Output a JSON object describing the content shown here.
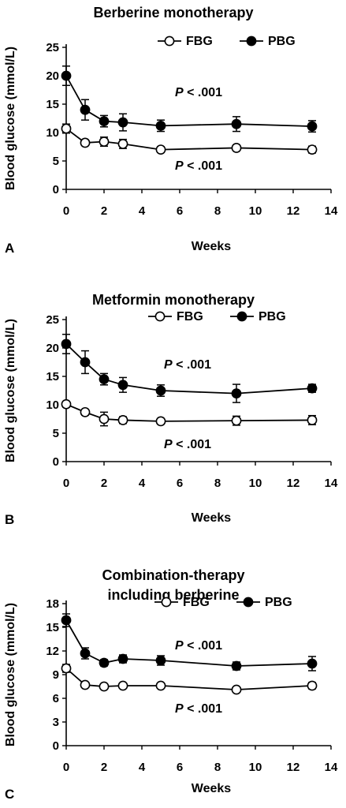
{
  "chart_data": [
    {
      "type": "line",
      "panel": "A",
      "title": [
        "Berberine monotherapy"
      ],
      "xlabel": "Weeks",
      "ylabel": "Blood glucose (mmol/L)",
      "xlim": [
        0,
        14
      ],
      "ylim": [
        0,
        25
      ],
      "xticks": [
        0,
        2,
        4,
        6,
        8,
        10,
        12,
        14
      ],
      "yticks": [
        0,
        5,
        10,
        15,
        20,
        25
      ],
      "legend": {
        "placement": "top-right"
      },
      "annotations": [
        {
          "italic": "P",
          "rest": " < .001",
          "series": "PBG"
        },
        {
          "italic": "P",
          "rest": " < .001",
          "series": "FBG"
        }
      ],
      "series": [
        {
          "name": "FBG",
          "marker": "open-circle",
          "x": [
            0,
            1,
            2,
            3,
            5,
            9,
            13
          ],
          "y": [
            10.7,
            8.2,
            8.4,
            8.0,
            7.0,
            7.3,
            7.0
          ],
          "err": [
            0.8,
            0.5,
            0.8,
            0.8,
            0.5,
            0.5,
            0.6
          ]
        },
        {
          "name": "PBG",
          "marker": "filled-circle",
          "x": [
            0,
            1,
            2,
            3,
            5,
            9,
            13
          ],
          "y": [
            20.0,
            14.0,
            12.0,
            11.8,
            11.2,
            11.5,
            11.1
          ],
          "err": [
            1.7,
            1.8,
            1.0,
            1.5,
            1.0,
            1.3,
            1.0
          ]
        }
      ]
    },
    {
      "type": "line",
      "panel": "B",
      "title": [
        "Metformin monotherapy"
      ],
      "xlabel": "Weeks",
      "ylabel": "Blood glucose (mmol/L)",
      "xlim": [
        0,
        14
      ],
      "ylim": [
        0,
        25
      ],
      "xticks": [
        0,
        2,
        4,
        6,
        8,
        10,
        12,
        14
      ],
      "yticks": [
        0,
        5,
        10,
        15,
        20,
        25
      ],
      "legend": {
        "placement": "top-right"
      },
      "annotations": [
        {
          "italic": "P",
          "rest": " < .001",
          "series": "PBG"
        },
        {
          "italic": "P",
          "rest": " < .001",
          "series": "FBG"
        }
      ],
      "series": [
        {
          "name": "FBG",
          "marker": "open-circle",
          "x": [
            0,
            1,
            2,
            3,
            5,
            9,
            13
          ],
          "y": [
            10.1,
            8.7,
            7.5,
            7.3,
            7.1,
            7.2,
            7.3
          ],
          "err": [
            0.5,
            0.5,
            1.2,
            0.6,
            0.5,
            0.8,
            0.8
          ]
        },
        {
          "name": "PBG",
          "marker": "filled-circle",
          "x": [
            0,
            1,
            2,
            3,
            5,
            9,
            13
          ],
          "y": [
            20.7,
            17.5,
            14.5,
            13.5,
            12.5,
            12.0,
            12.9
          ],
          "err": [
            1.7,
            2.0,
            1.0,
            1.3,
            1.0,
            1.6,
            0.7
          ]
        }
      ]
    },
    {
      "type": "line",
      "panel": "C",
      "title": [
        "Combination-therapy",
        "including berberine"
      ],
      "xlabel": "Weeks",
      "ylabel": "Blood glucose (mmol/L)",
      "xlim": [
        0,
        14
      ],
      "ylim": [
        0,
        18
      ],
      "xticks": [
        0,
        2,
        4,
        6,
        8,
        10,
        12,
        14
      ],
      "yticks": [
        0,
        3,
        6,
        9,
        12,
        15,
        18
      ],
      "legend": {
        "placement": "top-right"
      },
      "annotations": [
        {
          "italic": "P",
          "rest": " < .001",
          "series": "PBG"
        },
        {
          "italic": "P",
          "rest": " < .001",
          "series": "FBG"
        }
      ],
      "series": [
        {
          "name": "FBG",
          "marker": "open-circle",
          "x": [
            0,
            1,
            2,
            3,
            5,
            9,
            13
          ],
          "y": [
            9.8,
            7.7,
            7.5,
            7.6,
            7.6,
            7.1,
            7.6
          ],
          "err": [
            0.5,
            0.3,
            0.3,
            0.3,
            0.3,
            0.3,
            0.4
          ]
        },
        {
          "name": "PBG",
          "marker": "filled-circle",
          "x": [
            0,
            1,
            2,
            3,
            5,
            9,
            13
          ],
          "y": [
            15.9,
            11.7,
            10.5,
            11.0,
            10.8,
            10.1,
            10.4
          ],
          "err": [
            0.8,
            0.7,
            0.4,
            0.5,
            0.6,
            0.5,
            0.9
          ]
        }
      ]
    }
  ]
}
